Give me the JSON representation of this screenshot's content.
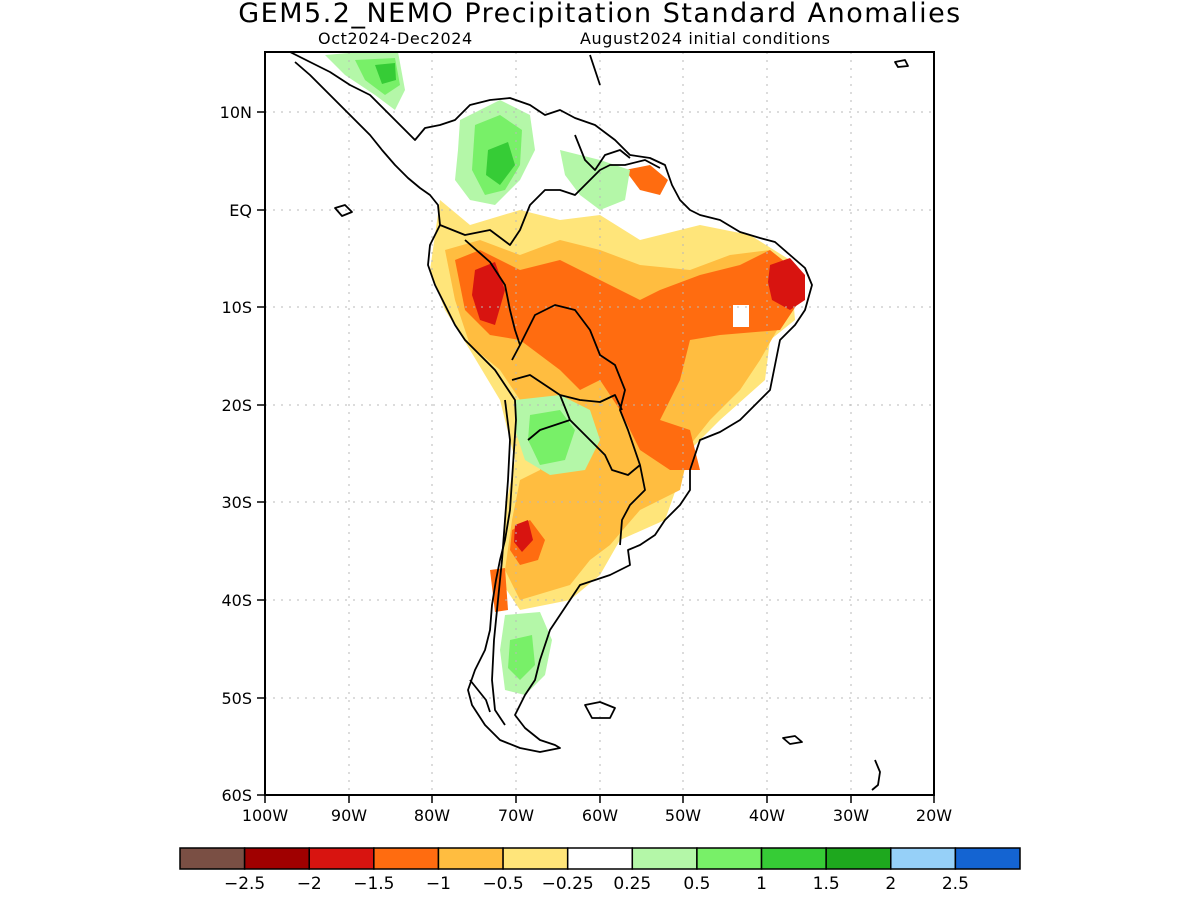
{
  "header": {
    "title": "GEM5.2_NEMO Precipitation Standard Anomalies",
    "period": "Oct2024-Dec2024",
    "initial_conditions": "August2024 initial conditions"
  },
  "map": {
    "lon_labels": [
      "100W",
      "90W",
      "80W",
      "70W",
      "60W",
      "50W",
      "40W",
      "30W",
      "20W"
    ],
    "lat_labels": [
      "10N",
      "EQ",
      "10S",
      "20S",
      "30S",
      "40S",
      "50S",
      "60S"
    ]
  },
  "colorbar": {
    "colors": [
      "#7a4f44",
      "#a00000",
      "#d81410",
      "#ff6c10",
      "#ffbd40",
      "#ffe57a",
      "#ffffff",
      "#b4f7a8",
      "#78f068",
      "#36cc36",
      "#1ea81e",
      "#96d0f8",
      "#1464d2"
    ],
    "labels": [
      "-2.5",
      "-2",
      "-1.5",
      "-1",
      "-0.5",
      "-0.25",
      "0.25",
      "0.5",
      "1",
      "1.5",
      "2",
      "2.5"
    ]
  }
}
